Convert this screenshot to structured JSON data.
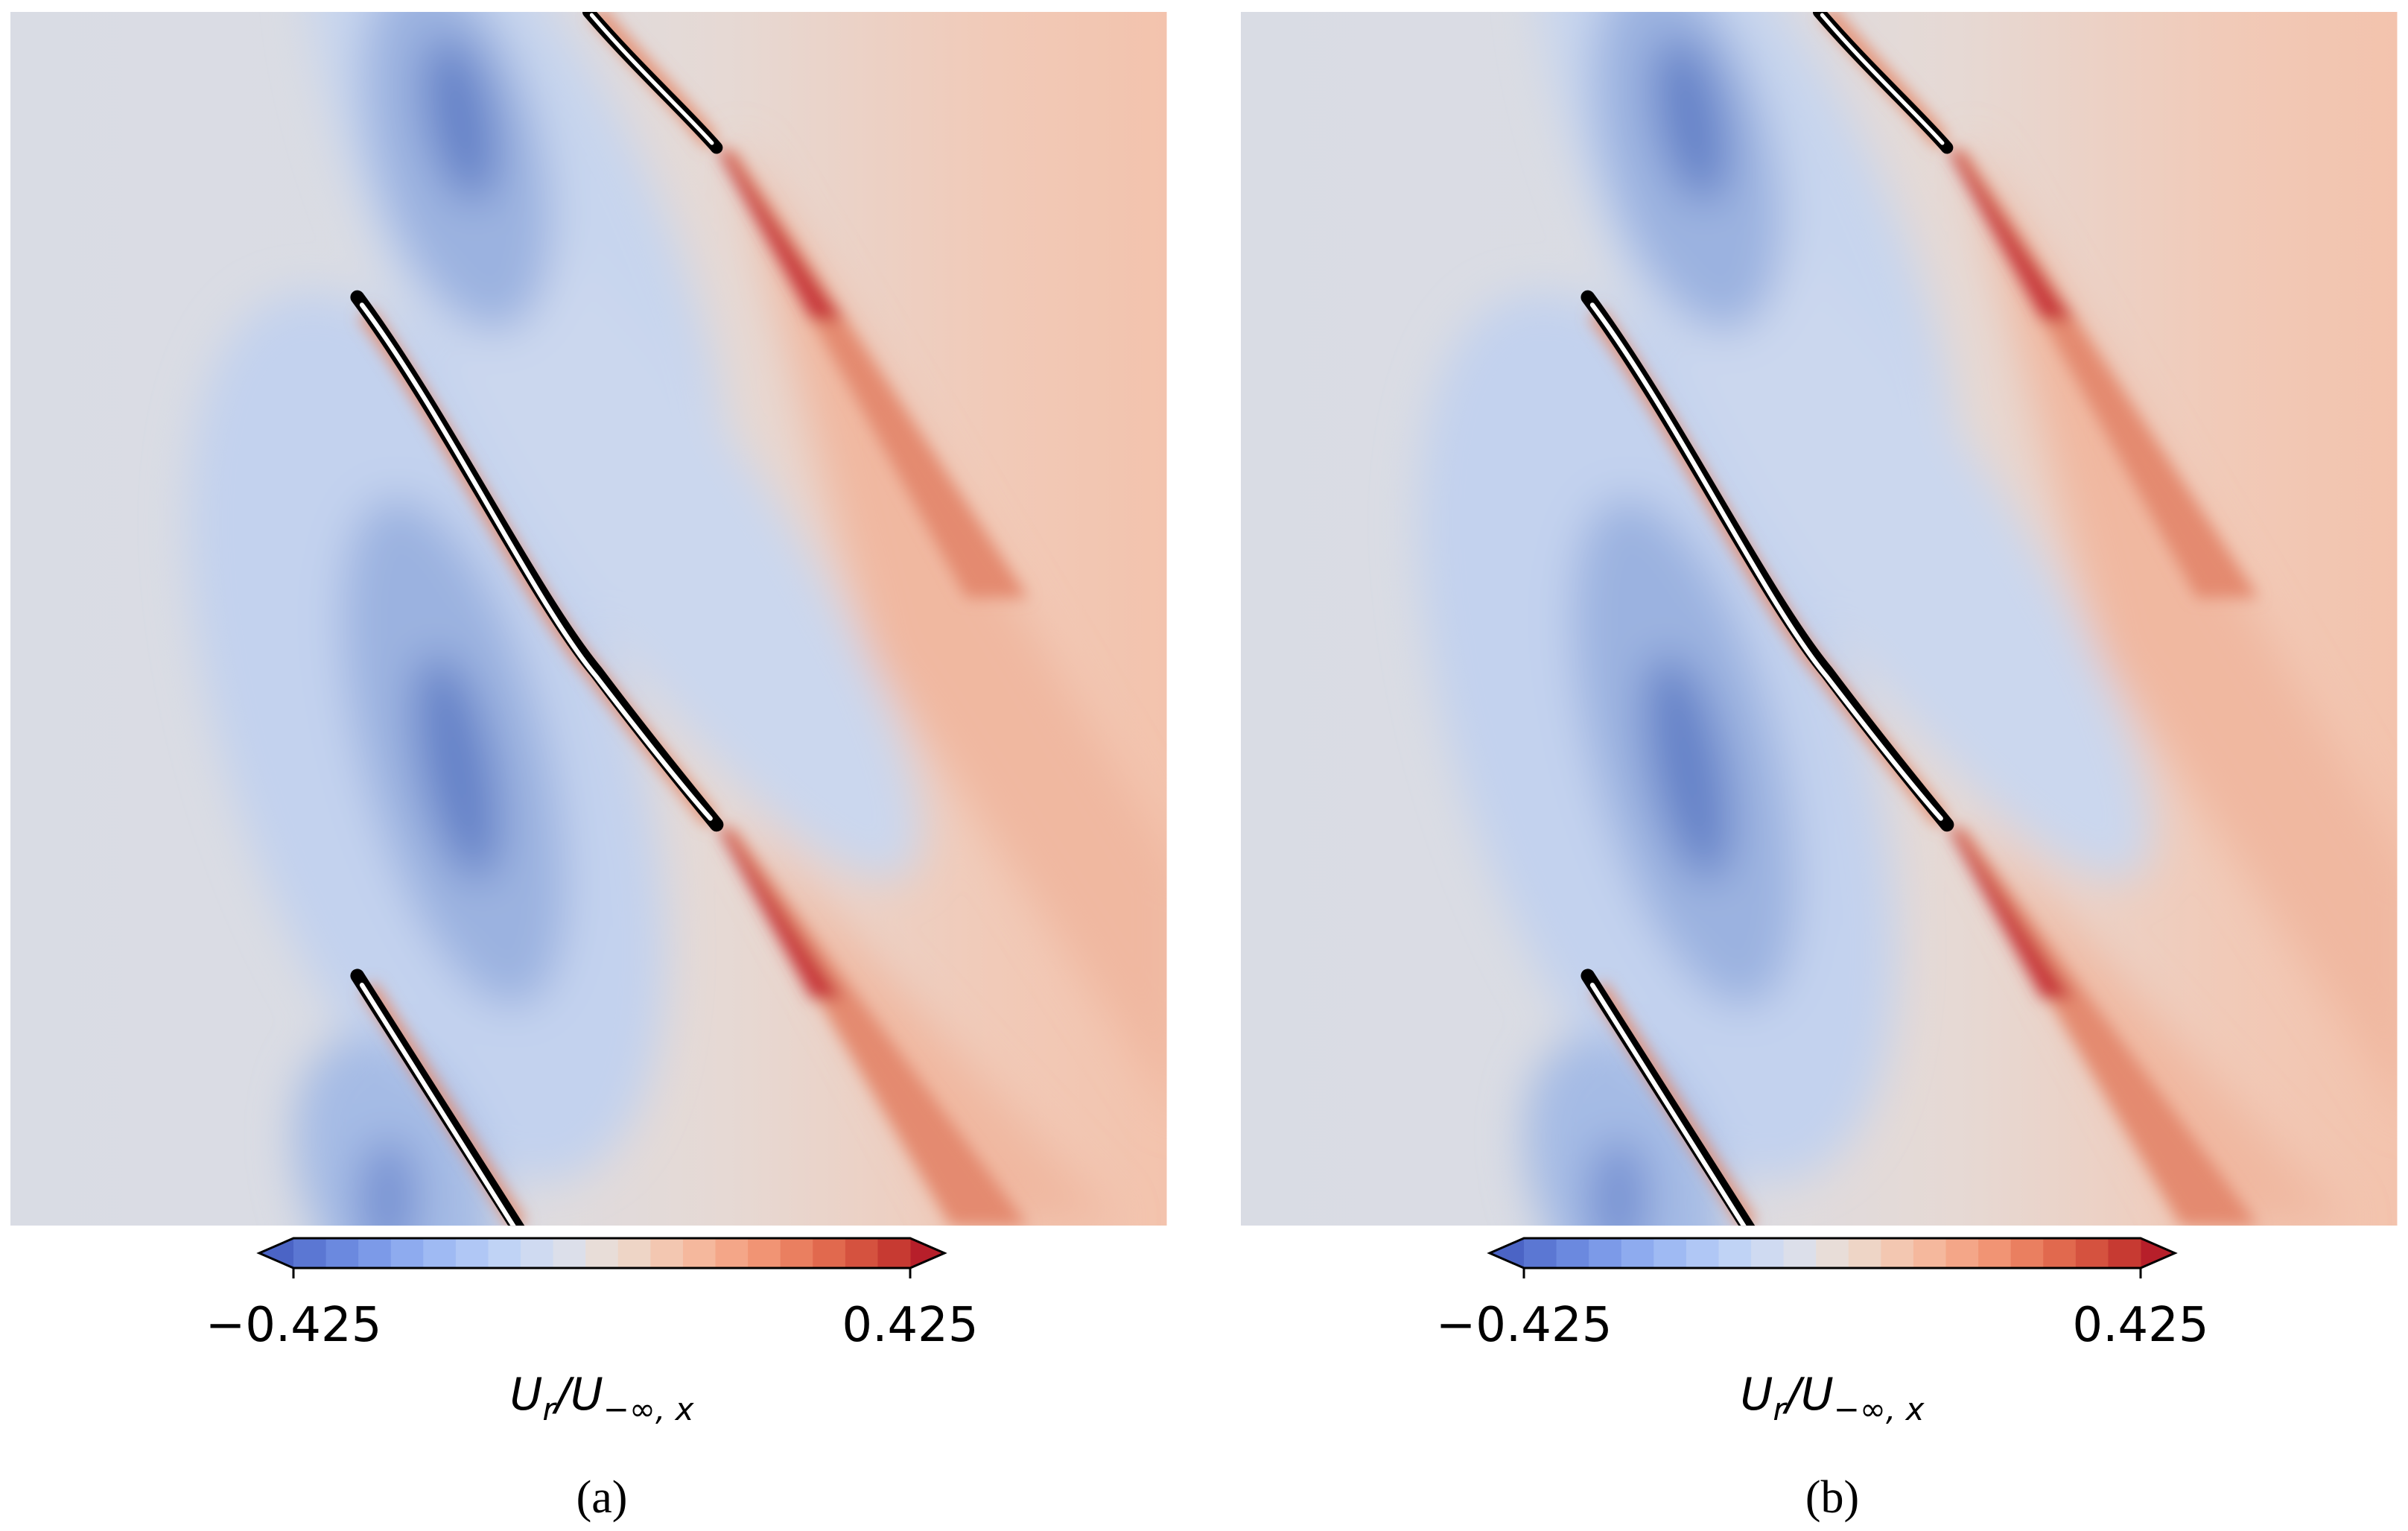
{
  "chart_data": [
    {
      "type": "contour",
      "caption": "(a)",
      "zlim": [
        -0.425,
        0.425
      ],
      "zticks": [
        {
          "value": -0.425,
          "label": "−0.425"
        },
        0.425
      ],
      "zlabel_parts": [
        "U",
        "r",
        "/U",
        "−∞, x"
      ],
      "colors": [
        "#4b64c5",
        "#5b77d3",
        "#6b89df",
        "#7c9ae8",
        "#8eabef",
        "#9fbaf3",
        "#b0c7f5",
        "#c0d3f5",
        "#cfdaf1",
        "#dcdfea",
        "#e8ddd8",
        "#eed5c6",
        "#f3c7b1",
        "#f5b89d",
        "#f4a688",
        "#f19474",
        "#ea7f60",
        "#e1694e",
        "#d5523f",
        "#c73a32",
        "#b71f2a"
      ]
    },
    {
      "type": "contour",
      "caption": "(b)",
      "zlim": [
        -0.425,
        0.425
      ],
      "zticks": [
        {
          "value": -0.425,
          "label": "−0.425"
        },
        0.425
      ],
      "zlabel_parts": [
        "U",
        "r",
        "/U",
        "−∞, x"
      ],
      "colors": [
        "#4b64c5",
        "#5b77d3",
        "#6b89df",
        "#7c9ae8",
        "#8eabef",
        "#9fbaf3",
        "#b0c7f5",
        "#c0d3f5",
        "#cfdaf1",
        "#dcdfea",
        "#e8ddd8",
        "#eed5c6",
        "#f3c7b1",
        "#f5b89d",
        "#f4a688",
        "#f19474",
        "#ea7f60",
        "#e1694e",
        "#d5523f",
        "#c73a32",
        "#b71f2a"
      ]
    }
  ]
}
